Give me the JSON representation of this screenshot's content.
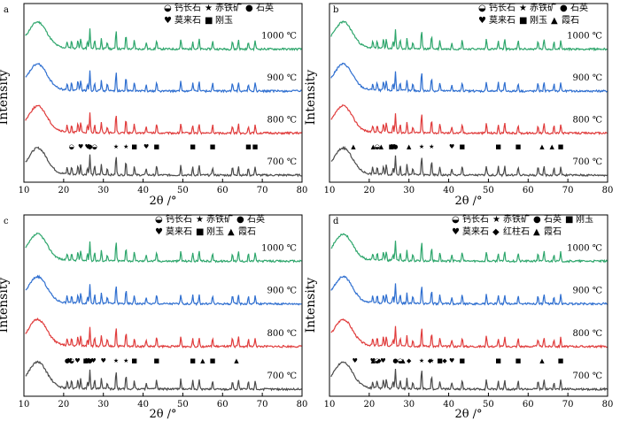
{
  "figure": {
    "xlabel": "2θ /°",
    "ylabel": "Intensity"
  },
  "chart_data": [
    {
      "type": "line",
      "panel": "a",
      "xlabel": "2θ /°",
      "ylabel": "Intensity",
      "xlim": [
        10,
        80
      ],
      "xticks": [
        10,
        20,
        30,
        40,
        50,
        60,
        70,
        80
      ],
      "legend": [
        "钙长石",
        "赤铁矿",
        "石英",
        "莫来石",
        "刚玉"
      ],
      "series": [
        {
          "name": "1000 ℃",
          "color": "#2ea66c"
        },
        {
          "name": "900 ℃",
          "color": "#2f6fd0"
        },
        {
          "name": "800 ℃",
          "color": "#e03c3c"
        },
        {
          "name": "700 ℃",
          "color": "#4a4a4a"
        }
      ],
      "annotations": [
        {
          "label": "钙长石",
          "marker": "half-circle",
          "x": [
            22.0,
            27.8
          ]
        },
        {
          "label": "赤铁矿",
          "marker": "star",
          "x": [
            33.2,
            35.7
          ]
        },
        {
          "label": "石英",
          "marker": "circle",
          "x": [
            26.6
          ]
        },
        {
          "label": "莫来石",
          "marker": "heart",
          "x": [
            24.3,
            26.0,
            40.8
          ]
        },
        {
          "label": "刚玉",
          "marker": "square",
          "x": [
            37.8,
            43.4,
            52.5,
            57.5,
            66.5,
            68.2
          ]
        }
      ]
    },
    {
      "type": "line",
      "panel": "b",
      "xlabel": "2θ /°",
      "ylabel": "Intensity",
      "xlim": [
        10,
        80
      ],
      "xticks": [
        10,
        20,
        30,
        40,
        50,
        60,
        70,
        80
      ],
      "legend": [
        "钙长石",
        "赤铁矿",
        "石英",
        "莫来石",
        "刚玉",
        "霞石"
      ],
      "series": [
        {
          "name": "1000 ℃",
          "color": "#2ea66c"
        },
        {
          "name": "900 ℃",
          "color": "#2f6fd0"
        },
        {
          "name": "800 ℃",
          "color": "#e03c3c"
        },
        {
          "name": "700 ℃",
          "color": "#4a4a4a"
        }
      ],
      "annotations": [
        {
          "label": "钙长石",
          "marker": "half-circle",
          "x": [
            22.0
          ]
        },
        {
          "label": "赤铁矿",
          "marker": "star",
          "x": [
            33.2,
            35.7
          ]
        },
        {
          "label": "石英",
          "marker": "circle",
          "x": [
            26.6
          ]
        },
        {
          "label": "莫来石",
          "marker": "heart",
          "x": [
            26.0,
            40.8
          ]
        },
        {
          "label": "刚玉",
          "marker": "square",
          "x": [
            25.6,
            43.4,
            52.5,
            57.5,
            68.2
          ]
        },
        {
          "label": "霞石",
          "marker": "triangle",
          "x": [
            16.0,
            21.0,
            23.0,
            30.0,
            63.5,
            66.0
          ]
        }
      ]
    },
    {
      "type": "line",
      "panel": "c",
      "xlabel": "2θ /°",
      "ylabel": "Intensity",
      "xlim": [
        10,
        80
      ],
      "xticks": [
        10,
        20,
        30,
        40,
        50,
        60,
        70,
        80
      ],
      "legend": [
        "钙长石",
        "赤铁矿",
        "石英",
        "莫来石",
        "刚玉",
        "霞石"
      ],
      "series": [
        {
          "name": "1000 ℃",
          "color": "#2ea66c"
        },
        {
          "name": "900 ℃",
          "color": "#2f6fd0"
        },
        {
          "name": "800 ℃",
          "color": "#e03c3c"
        },
        {
          "name": "700 ℃",
          "color": "#4a4a4a"
        }
      ],
      "annotations": [
        {
          "label": "钙长石",
          "marker": "half-circle",
          "x": [
            22.0
          ]
        },
        {
          "label": "赤铁矿",
          "marker": "star",
          "x": [
            33.2,
            35.7
          ]
        },
        {
          "label": "石英",
          "marker": "circle",
          "x": [
            20.9,
            26.6
          ]
        },
        {
          "label": "莫来石",
          "marker": "heart",
          "x": [
            21.5,
            23.5,
            26.0,
            27.5,
            30.0
          ]
        },
        {
          "label": "刚玉",
          "marker": "square",
          "x": [
            25.6,
            37.8,
            43.4,
            52.5,
            57.5
          ]
        },
        {
          "label": "霞石",
          "marker": "triangle",
          "x": [
            55.0,
            63.5
          ]
        }
      ]
    },
    {
      "type": "line",
      "panel": "d",
      "xlabel": "2θ /°",
      "ylabel": "Intensity",
      "xlim": [
        10,
        80
      ],
      "xticks": [
        10,
        20,
        30,
        40,
        50,
        60,
        70,
        80
      ],
      "legend": [
        "钙长石",
        "赤铁矿",
        "石英",
        "刚玉",
        "莫来石",
        "红柱石",
        "霞石"
      ],
      "series": [
        {
          "name": "1000 ℃",
          "color": "#2ea66c"
        },
        {
          "name": "900 ℃",
          "color": "#2f6fd0"
        },
        {
          "name": "800 ℃",
          "color": "#e03c3c"
        },
        {
          "name": "700 ℃",
          "color": "#4a4a4a"
        }
      ],
      "annotations": [
        {
          "label": "钙长石",
          "marker": "half-circle",
          "x": [
            22.0,
            27.8
          ]
        },
        {
          "label": "赤铁矿",
          "marker": "star",
          "x": [
            33.2,
            35.7
          ]
        },
        {
          "label": "石英",
          "marker": "circle",
          "x": [
            26.6
          ]
        },
        {
          "label": "刚玉",
          "marker": "square",
          "x": [
            37.8,
            43.4,
            52.5,
            57.5,
            68.2
          ]
        },
        {
          "label": "莫来石",
          "marker": "heart",
          "x": [
            16.4,
            20.9,
            23.5,
            40.8
          ]
        },
        {
          "label": "红柱石",
          "marker": "diamond",
          "x": [
            22.5,
            30.0,
            35.3,
            39.0
          ]
        },
        {
          "label": "霞石",
          "marker": "triangle",
          "x": [
            21.0,
            28.5,
            63.5
          ]
        }
      ]
    }
  ]
}
